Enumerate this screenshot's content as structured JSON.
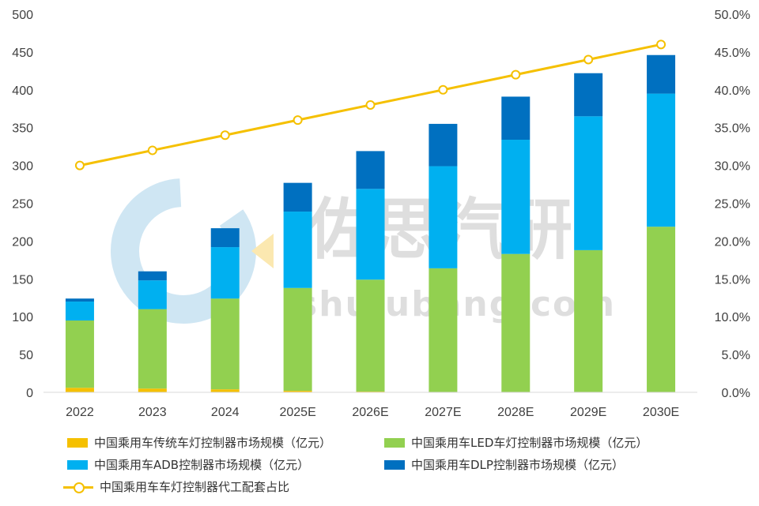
{
  "watermark": {
    "cn": "佐思汽研",
    "url": "shujubang.com"
  },
  "chart_data": {
    "type": "bar",
    "stacked": true,
    "categories": [
      "2022",
      "2023",
      "2024",
      "2025E",
      "2026E",
      "2027E",
      "2028E",
      "2029E",
      "2030E"
    ],
    "series": [
      {
        "name": "中国乘用车传统车灯控制器市场规模（亿元）",
        "color": "#f5c000",
        "values": [
          6,
          5,
          4,
          2,
          1,
          0,
          0,
          0,
          0
        ]
      },
      {
        "name": "中国乘用车LED车灯控制器市场规模（亿元）",
        "color": "#92d050",
        "values": [
          89,
          105,
          120,
          136,
          148,
          164,
          183,
          188,
          219
        ]
      },
      {
        "name": "中国乘用车ADB控制器市场规模（亿元）",
        "color": "#00b0f0",
        "values": [
          25,
          38,
          68,
          101,
          120,
          135,
          151,
          177,
          176
        ]
      },
      {
        "name": "中国乘用车DLP控制器市场规模（亿元）",
        "color": "#0070c0",
        "values": [
          4,
          12,
          25,
          38,
          50,
          56,
          57,
          57,
          51
        ]
      }
    ],
    "line_series": {
      "name": "中国乘用车车灯控制器代工配套占比",
      "color": "#f5c000",
      "axis": "right",
      "values": [
        30.0,
        32.0,
        34.0,
        36.0,
        38.0,
        40.0,
        42.0,
        44.0,
        46.0
      ]
    },
    "y_left": {
      "min": 0,
      "max": 500,
      "step": 50,
      "ticks": [
        "0",
        "50",
        "100",
        "150",
        "200",
        "250",
        "300",
        "350",
        "400",
        "450",
        "500"
      ]
    },
    "y_right": {
      "min": 0,
      "max": 50,
      "step": 5,
      "ticks": [
        "0.0%",
        "5.0%",
        "10.0%",
        "15.0%",
        "20.0%",
        "25.0%",
        "30.0%",
        "35.0%",
        "40.0%",
        "45.0%",
        "50.0%"
      ]
    },
    "grid": false,
    "legend_position": "bottom"
  },
  "legend": {
    "items": [
      {
        "label": "中国乘用车传统车灯控制器市场规模（亿元）",
        "kind": "bar",
        "color": "#f5c000"
      },
      {
        "label": "中国乘用车LED车灯控制器市场规模（亿元）",
        "kind": "bar",
        "color": "#92d050"
      },
      {
        "label": "中国乘用车ADB控制器市场规模（亿元）",
        "kind": "bar",
        "color": "#00b0f0"
      },
      {
        "label": "中国乘用车DLP控制器市场规模（亿元）",
        "kind": "bar",
        "color": "#0070c0"
      },
      {
        "label": "中国乘用车车灯控制器代工配套占比",
        "kind": "line",
        "color": "#f5c000"
      }
    ]
  }
}
